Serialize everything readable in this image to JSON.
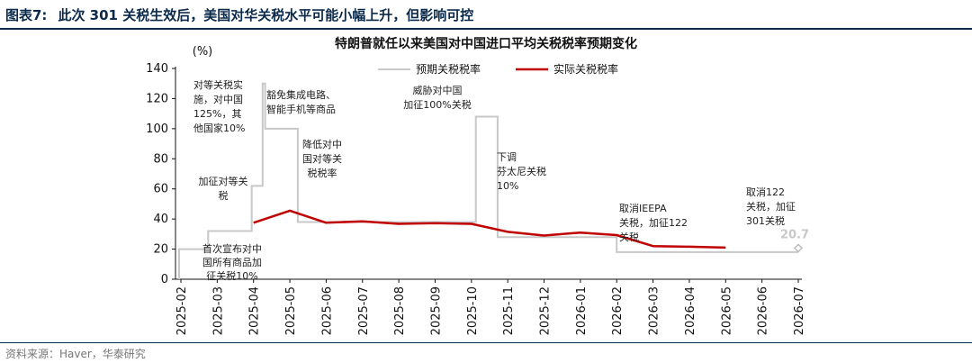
{
  "figure_label": "图表7:",
  "figure_heading": "此次 301 关税生效后，美国对华关税水平可能小幅上升，但影响可控",
  "source": "资料来源：Haver，华泰研究",
  "chart_data": {
    "type": "line",
    "title": "特朗普就任以来美国对中国进口平均关税税率预期变化",
    "unit_label": "(%)",
    "xlabel": "",
    "ylabel": "",
    "ylim": [
      0,
      140
    ],
    "yticks": [
      0,
      20,
      40,
      60,
      80,
      100,
      120,
      140
    ],
    "categories": [
      "2025-02",
      "2025-03",
      "2025-04",
      "2025-05",
      "2025-06",
      "2025-07",
      "2025-08",
      "2025-09",
      "2025-10",
      "2025-11",
      "2025-12",
      "2026-01",
      "2026-02",
      "2026-03",
      "2026-04",
      "2026-05",
      "2026-06",
      "2026-07"
    ],
    "grid": false,
    "legend_position": "top",
    "colors": {
      "expected": "#c8c8c8",
      "actual": "#c00000"
    },
    "series": [
      {
        "name": "预期关税税率",
        "style": "step",
        "points": [
          [
            -0.05,
            0
          ],
          [
            -0.05,
            20
          ],
          [
            0.65,
            20
          ],
          [
            0.65,
            21
          ],
          [
            0.75,
            21
          ],
          [
            0.75,
            32
          ],
          [
            1.95,
            32
          ],
          [
            1.95,
            62
          ],
          [
            2.25,
            62
          ],
          [
            2.25,
            130
          ],
          [
            2.32,
            130
          ],
          [
            2.32,
            100
          ],
          [
            3.22,
            100
          ],
          [
            3.22,
            38
          ],
          [
            8.12,
            38
          ],
          [
            8.12,
            108
          ],
          [
            8.72,
            108
          ],
          [
            8.72,
            28
          ],
          [
            12.0,
            28
          ],
          [
            12.0,
            18
          ],
          [
            17.0,
            18
          ]
        ]
      },
      {
        "name": "实际关税税率",
        "style": "line",
        "points": [
          [
            2,
            37.5
          ],
          [
            3,
            45.5
          ],
          [
            4,
            37.5
          ],
          [
            5,
            38.5
          ],
          [
            6,
            36.8
          ],
          [
            7,
            37.2
          ],
          [
            8,
            36.8
          ],
          [
            9,
            31.5
          ],
          [
            10,
            29
          ],
          [
            11,
            31
          ],
          [
            12,
            29.3
          ],
          [
            13,
            22
          ],
          [
            14,
            21.6
          ],
          [
            15,
            21
          ]
        ]
      }
    ],
    "end_marker": {
      "x": 18.0,
      "y": 20.7,
      "label": "20.7"
    },
    "annotations": [
      {
        "text": [
          "对等关税实",
          "施，对中国",
          "125%，其",
          "他国家10%"
        ]
      },
      {
        "text": [
          "豁免集成电路、",
          "智能手机等商品"
        ]
      },
      {
        "text": [
          "威胁对中国",
          "加征100%关税"
        ]
      },
      {
        "text": [
          "降低对中",
          "国对等关",
          "税税率"
        ]
      },
      {
        "text": [
          "加征对等关",
          "税"
        ]
      },
      {
        "text": [
          "下调",
          "芬太尼关税",
          "10%"
        ]
      },
      {
        "text": [
          "取消IEEPA",
          "关税，加征122",
          "关税"
        ]
      },
      {
        "text": [
          "取消122",
          "关税，加征",
          "301关税"
        ]
      },
      {
        "text": [
          "首次宣布对中",
          "国所有商品加",
          "征关税10%"
        ]
      }
    ]
  }
}
